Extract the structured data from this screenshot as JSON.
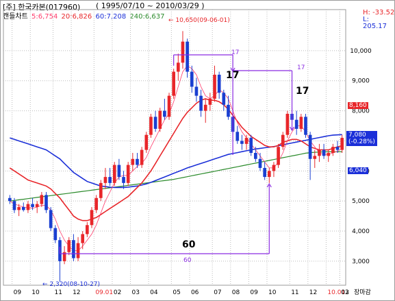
{
  "header": {
    "stock": "[주] 한국카본(017960)",
    "range": "( 1995/07/10 ~ 2010/03/29 )"
  },
  "legend": {
    "type_label": "캔들차트",
    "ma5": "5:6,754",
    "ma20": "20:6,826",
    "ma60": "60:7,208",
    "ma240": "240:6,637"
  },
  "hl": {
    "high": "H: -33.52",
    "low": "L: 205.17"
  },
  "annotations": {
    "max_label": "← 10,650(09-06-01)",
    "min_label": "← 2,320(08-10-27)",
    "big_17a": "17",
    "big_17b": "17",
    "big_60": "60",
    "small_17a": "17",
    "small_17b": "17",
    "small_60": "60"
  },
  "price_tags": {
    "current": "7,080",
    "current_change": "(-0.28%)",
    "upper": "8,160",
    "lower": "6,040"
  },
  "colors": {
    "up": "#e8262a",
    "down": "#1a3fd1",
    "ma5": "#ff3b6b",
    "ma20": "#e8262a",
    "ma60": "#1b2fd8",
    "ma240": "#2a8a2a",
    "annotation": "#8a2be2"
  },
  "chart_data": {
    "type": "candlestick",
    "ylim": [
      2200,
      11000
    ],
    "yticks": [
      3000,
      4000,
      5000,
      6000,
      7000,
      8000,
      9000,
      10000
    ],
    "ytick_labels": [
      "3,000",
      "4,000",
      "5,000",
      "6,000",
      "7,000",
      "8,000",
      "9,000",
      "10,000"
    ],
    "x_start_label": "09",
    "x_end_label": "장마감",
    "month_labels": [
      "09",
      "10",
      "11",
      "12",
      "09.01",
      "02",
      "03",
      "04",
      "05",
      "06",
      "07",
      "08",
      "09",
      "10",
      "11",
      "12",
      "10.01",
      "02",
      "03"
    ],
    "month_label_weeks": [
      1,
      5,
      10,
      14,
      19,
      23,
      27,
      31,
      36,
      40,
      45,
      49,
      53,
      57,
      62,
      66,
      70,
      75,
      79
    ],
    "year_label_indices": [
      4,
      16
    ],
    "candles": [
      {
        "o": 5100,
        "h": 5200,
        "l": 4900,
        "c": 5000
      },
      {
        "o": 5000,
        "h": 5100,
        "l": 4600,
        "c": 4700
      },
      {
        "o": 4700,
        "h": 4900,
        "l": 4500,
        "c": 4800
      },
      {
        "o": 4800,
        "h": 4950,
        "l": 4650,
        "c": 4700
      },
      {
        "o": 4700,
        "h": 5000,
        "l": 4600,
        "c": 4900
      },
      {
        "o": 4900,
        "h": 5100,
        "l": 4700,
        "c": 4800
      },
      {
        "o": 4800,
        "h": 5000,
        "l": 4600,
        "c": 4900
      },
      {
        "o": 4900,
        "h": 5300,
        "l": 4800,
        "c": 5200
      },
      {
        "o": 5200,
        "h": 5300,
        "l": 4600,
        "c": 4700
      },
      {
        "o": 4700,
        "h": 4800,
        "l": 4000,
        "c": 4100
      },
      {
        "o": 4100,
        "h": 4200,
        "l": 3600,
        "c": 3700
      },
      {
        "o": 3700,
        "h": 3800,
        "l": 2320,
        "c": 3000
      },
      {
        "o": 3000,
        "h": 3500,
        "l": 2900,
        "c": 3300
      },
      {
        "o": 3300,
        "h": 3800,
        "l": 3200,
        "c": 3700
      },
      {
        "o": 3700,
        "h": 3900,
        "l": 3000,
        "c": 3100
      },
      {
        "o": 3100,
        "h": 3800,
        "l": 3000,
        "c": 3600
      },
      {
        "o": 3600,
        "h": 4000,
        "l": 3400,
        "c": 3900
      },
      {
        "o": 3900,
        "h": 4300,
        "l": 3800,
        "c": 4200
      },
      {
        "o": 4200,
        "h": 4800,
        "l": 4100,
        "c": 4700
      },
      {
        "o": 4700,
        "h": 5200,
        "l": 4600,
        "c": 5100
      },
      {
        "o": 5100,
        "h": 5700,
        "l": 5000,
        "c": 5600
      },
      {
        "o": 5600,
        "h": 6100,
        "l": 5400,
        "c": 5800
      },
      {
        "o": 5800,
        "h": 6100,
        "l": 5500,
        "c": 5600
      },
      {
        "o": 5600,
        "h": 6300,
        "l": 5500,
        "c": 6200
      },
      {
        "o": 6200,
        "h": 6400,
        "l": 5700,
        "c": 5800
      },
      {
        "o": 5800,
        "h": 6000,
        "l": 5400,
        "c": 5600
      },
      {
        "o": 5600,
        "h": 6300,
        "l": 5500,
        "c": 6200
      },
      {
        "o": 6200,
        "h": 6600,
        "l": 6000,
        "c": 6400
      },
      {
        "o": 6400,
        "h": 6600,
        "l": 6100,
        "c": 6200
      },
      {
        "o": 6200,
        "h": 6800,
        "l": 6100,
        "c": 6700
      },
      {
        "o": 6700,
        "h": 7300,
        "l": 6600,
        "c": 7200
      },
      {
        "o": 7200,
        "h": 7900,
        "l": 7100,
        "c": 7800
      },
      {
        "o": 7800,
        "h": 8000,
        "l": 7300,
        "c": 7400
      },
      {
        "o": 7400,
        "h": 8100,
        "l": 7300,
        "c": 8000
      },
      {
        "o": 8000,
        "h": 8400,
        "l": 7700,
        "c": 7800
      },
      {
        "o": 7800,
        "h": 8600,
        "l": 7700,
        "c": 8500
      },
      {
        "o": 8500,
        "h": 9400,
        "l": 8400,
        "c": 9300
      },
      {
        "o": 9300,
        "h": 9900,
        "l": 9000,
        "c": 9600
      },
      {
        "o": 9600,
        "h": 10650,
        "l": 9400,
        "c": 10300
      },
      {
        "o": 10300,
        "h": 10400,
        "l": 9100,
        "c": 9300
      },
      {
        "o": 9300,
        "h": 9500,
        "l": 8600,
        "c": 8800
      },
      {
        "o": 8800,
        "h": 9100,
        "l": 8300,
        "c": 8500
      },
      {
        "o": 8500,
        "h": 8700,
        "l": 7800,
        "c": 8000
      },
      {
        "o": 8000,
        "h": 8400,
        "l": 7600,
        "c": 8200
      },
      {
        "o": 8200,
        "h": 8600,
        "l": 8000,
        "c": 8400
      },
      {
        "o": 8400,
        "h": 9500,
        "l": 8300,
        "c": 9200
      },
      {
        "o": 9200,
        "h": 9300,
        "l": 8400,
        "c": 8600
      },
      {
        "o": 8600,
        "h": 8700,
        "l": 8000,
        "c": 8200
      },
      {
        "o": 8200,
        "h": 8500,
        "l": 7700,
        "c": 7800
      },
      {
        "o": 7800,
        "h": 7900,
        "l": 7200,
        "c": 7300
      },
      {
        "o": 7300,
        "h": 7500,
        "l": 6900,
        "c": 7000
      },
      {
        "o": 7000,
        "h": 7200,
        "l": 6700,
        "c": 6900
      },
      {
        "o": 6900,
        "h": 7200,
        "l": 6700,
        "c": 7100
      },
      {
        "o": 7100,
        "h": 7200,
        "l": 6500,
        "c": 6600
      },
      {
        "o": 6600,
        "h": 6800,
        "l": 6300,
        "c": 6400
      },
      {
        "o": 6400,
        "h": 6600,
        "l": 6000,
        "c": 6100
      },
      {
        "o": 6100,
        "h": 6300,
        "l": 5700,
        "c": 5800
      },
      {
        "o": 5800,
        "h": 6100,
        "l": 5600,
        "c": 6000
      },
      {
        "o": 6000,
        "h": 6300,
        "l": 5800,
        "c": 6200
      },
      {
        "o": 6200,
        "h": 6900,
        "l": 6100,
        "c": 6800
      },
      {
        "o": 6800,
        "h": 7300,
        "l": 6700,
        "c": 7200
      },
      {
        "o": 7200,
        "h": 8000,
        "l": 7100,
        "c": 7900
      },
      {
        "o": 7900,
        "h": 8100,
        "l": 7600,
        "c": 7700
      },
      {
        "o": 7700,
        "h": 8000,
        "l": 7200,
        "c": 7400
      },
      {
        "o": 7400,
        "h": 7900,
        "l": 7300,
        "c": 7800
      },
      {
        "o": 7800,
        "h": 7900,
        "l": 7100,
        "c": 7200
      },
      {
        "o": 7200,
        "h": 7300,
        "l": 5700,
        "c": 6400
      },
      {
        "o": 6400,
        "h": 6700,
        "l": 6100,
        "c": 6500
      },
      {
        "o": 6500,
        "h": 6900,
        "l": 6300,
        "c": 6700
      },
      {
        "o": 6700,
        "h": 6900,
        "l": 6400,
        "c": 6500
      },
      {
        "o": 6500,
        "h": 6700,
        "l": 6300,
        "c": 6600
      },
      {
        "o": 6600,
        "h": 6900,
        "l": 6500,
        "c": 6800
      },
      {
        "o": 6800,
        "h": 7000,
        "l": 6600,
        "c": 6700
      },
      {
        "o": 6700,
        "h": 7200,
        "l": 6600,
        "c": 7100
      }
    ],
    "ma5": [
      5000,
      4900,
      4850,
      4800,
      4780,
      4760,
      4800,
      4860,
      4850,
      4700,
      4400,
      4000,
      3700,
      3500,
      3350,
      3350,
      3500,
      3700,
      3900,
      4200,
      4600,
      5000,
      5300,
      5600,
      5800,
      5850,
      5850,
      6000,
      6150,
      6250,
      6450,
      6800,
      7100,
      7400,
      7700,
      7900,
      8300,
      8800,
      9300,
      9500,
      9400,
      9200,
      8800,
      8500,
      8400,
      8500,
      8700,
      8600,
      8400,
      8000,
      7600,
      7300,
      7100,
      6900,
      6700,
      6500,
      6300,
      6100,
      6100,
      6300,
      6600,
      7000,
      7300,
      7500,
      7500,
      7300,
      7000,
      6800,
      6600,
      6550,
      6550,
      6600,
      6650,
      6750
    ],
    "ma20": [
      6100,
      6000,
      5900,
      5800,
      5700,
      5650,
      5600,
      5550,
      5500,
      5400,
      5250,
      5100,
      4900,
      4700,
      4500,
      4400,
      4350,
      4350,
      4400,
      4450,
      4550,
      4650,
      4750,
      4850,
      4950,
      5050,
      5150,
      5300,
      5450,
      5600,
      5800,
      6000,
      6250,
      6500,
      6750,
      7000,
      7250,
      7500,
      7750,
      7950,
      8100,
      8250,
      8350,
      8400,
      8350,
      8350,
      8300,
      8200,
      8050,
      7850,
      7650,
      7450,
      7300,
      7150,
      7050,
      6950,
      6850,
      6800,
      6800,
      6850,
      6950,
      7000,
      7050,
      7050,
      7000,
      6900,
      6800,
      6750,
      6700,
      6700,
      6700,
      6750,
      6800,
      6830
    ],
    "ma60": [
      7100,
      7050,
      7000,
      6950,
      6900,
      6850,
      6800,
      6750,
      6700,
      6600,
      6500,
      6400,
      6250,
      6100,
      5950,
      5850,
      5750,
      5650,
      5600,
      5550,
      5500,
      5480,
      5460,
      5450,
      5450,
      5450,
      5460,
      5480,
      5500,
      5530,
      5570,
      5620,
      5680,
      5740,
      5800,
      5860,
      5920,
      5980,
      6040,
      6100,
      6150,
      6200,
      6250,
      6300,
      6350,
      6400,
      6450,
      6500,
      6550,
      6580,
      6610,
      6640,
      6670,
      6700,
      6730,
      6750,
      6770,
      6790,
      6810,
      6840,
      6870,
      6900,
      6930,
      6960,
      6990,
      7020,
      7050,
      7080,
      7110,
      7140,
      7170,
      7190,
      7200,
      7208
    ],
    "ma240": [
      5000,
      5020,
      5040,
      5060,
      5080,
      5100,
      5120,
      5140,
      5160,
      5180,
      5200,
      5220,
      5240,
      5260,
      5280,
      5300,
      5320,
      5340,
      5360,
      5380,
      5400,
      5420,
      5440,
      5460,
      5480,
      5500,
      5520,
      5540,
      5560,
      5580,
      5600,
      5620,
      5640,
      5660,
      5680,
      5700,
      5720,
      5750,
      5780,
      5810,
      5840,
      5870,
      5900,
      5930,
      5960,
      5990,
      6020,
      6050,
      6080,
      6110,
      6140,
      6170,
      6200,
      6230,
      6260,
      6290,
      6320,
      6350,
      6380,
      6410,
      6440,
      6470,
      6500,
      6530,
      6560,
      6590,
      6610,
      6620,
      6630,
      6635,
      6636,
      6637,
      6637,
      6637
    ]
  }
}
